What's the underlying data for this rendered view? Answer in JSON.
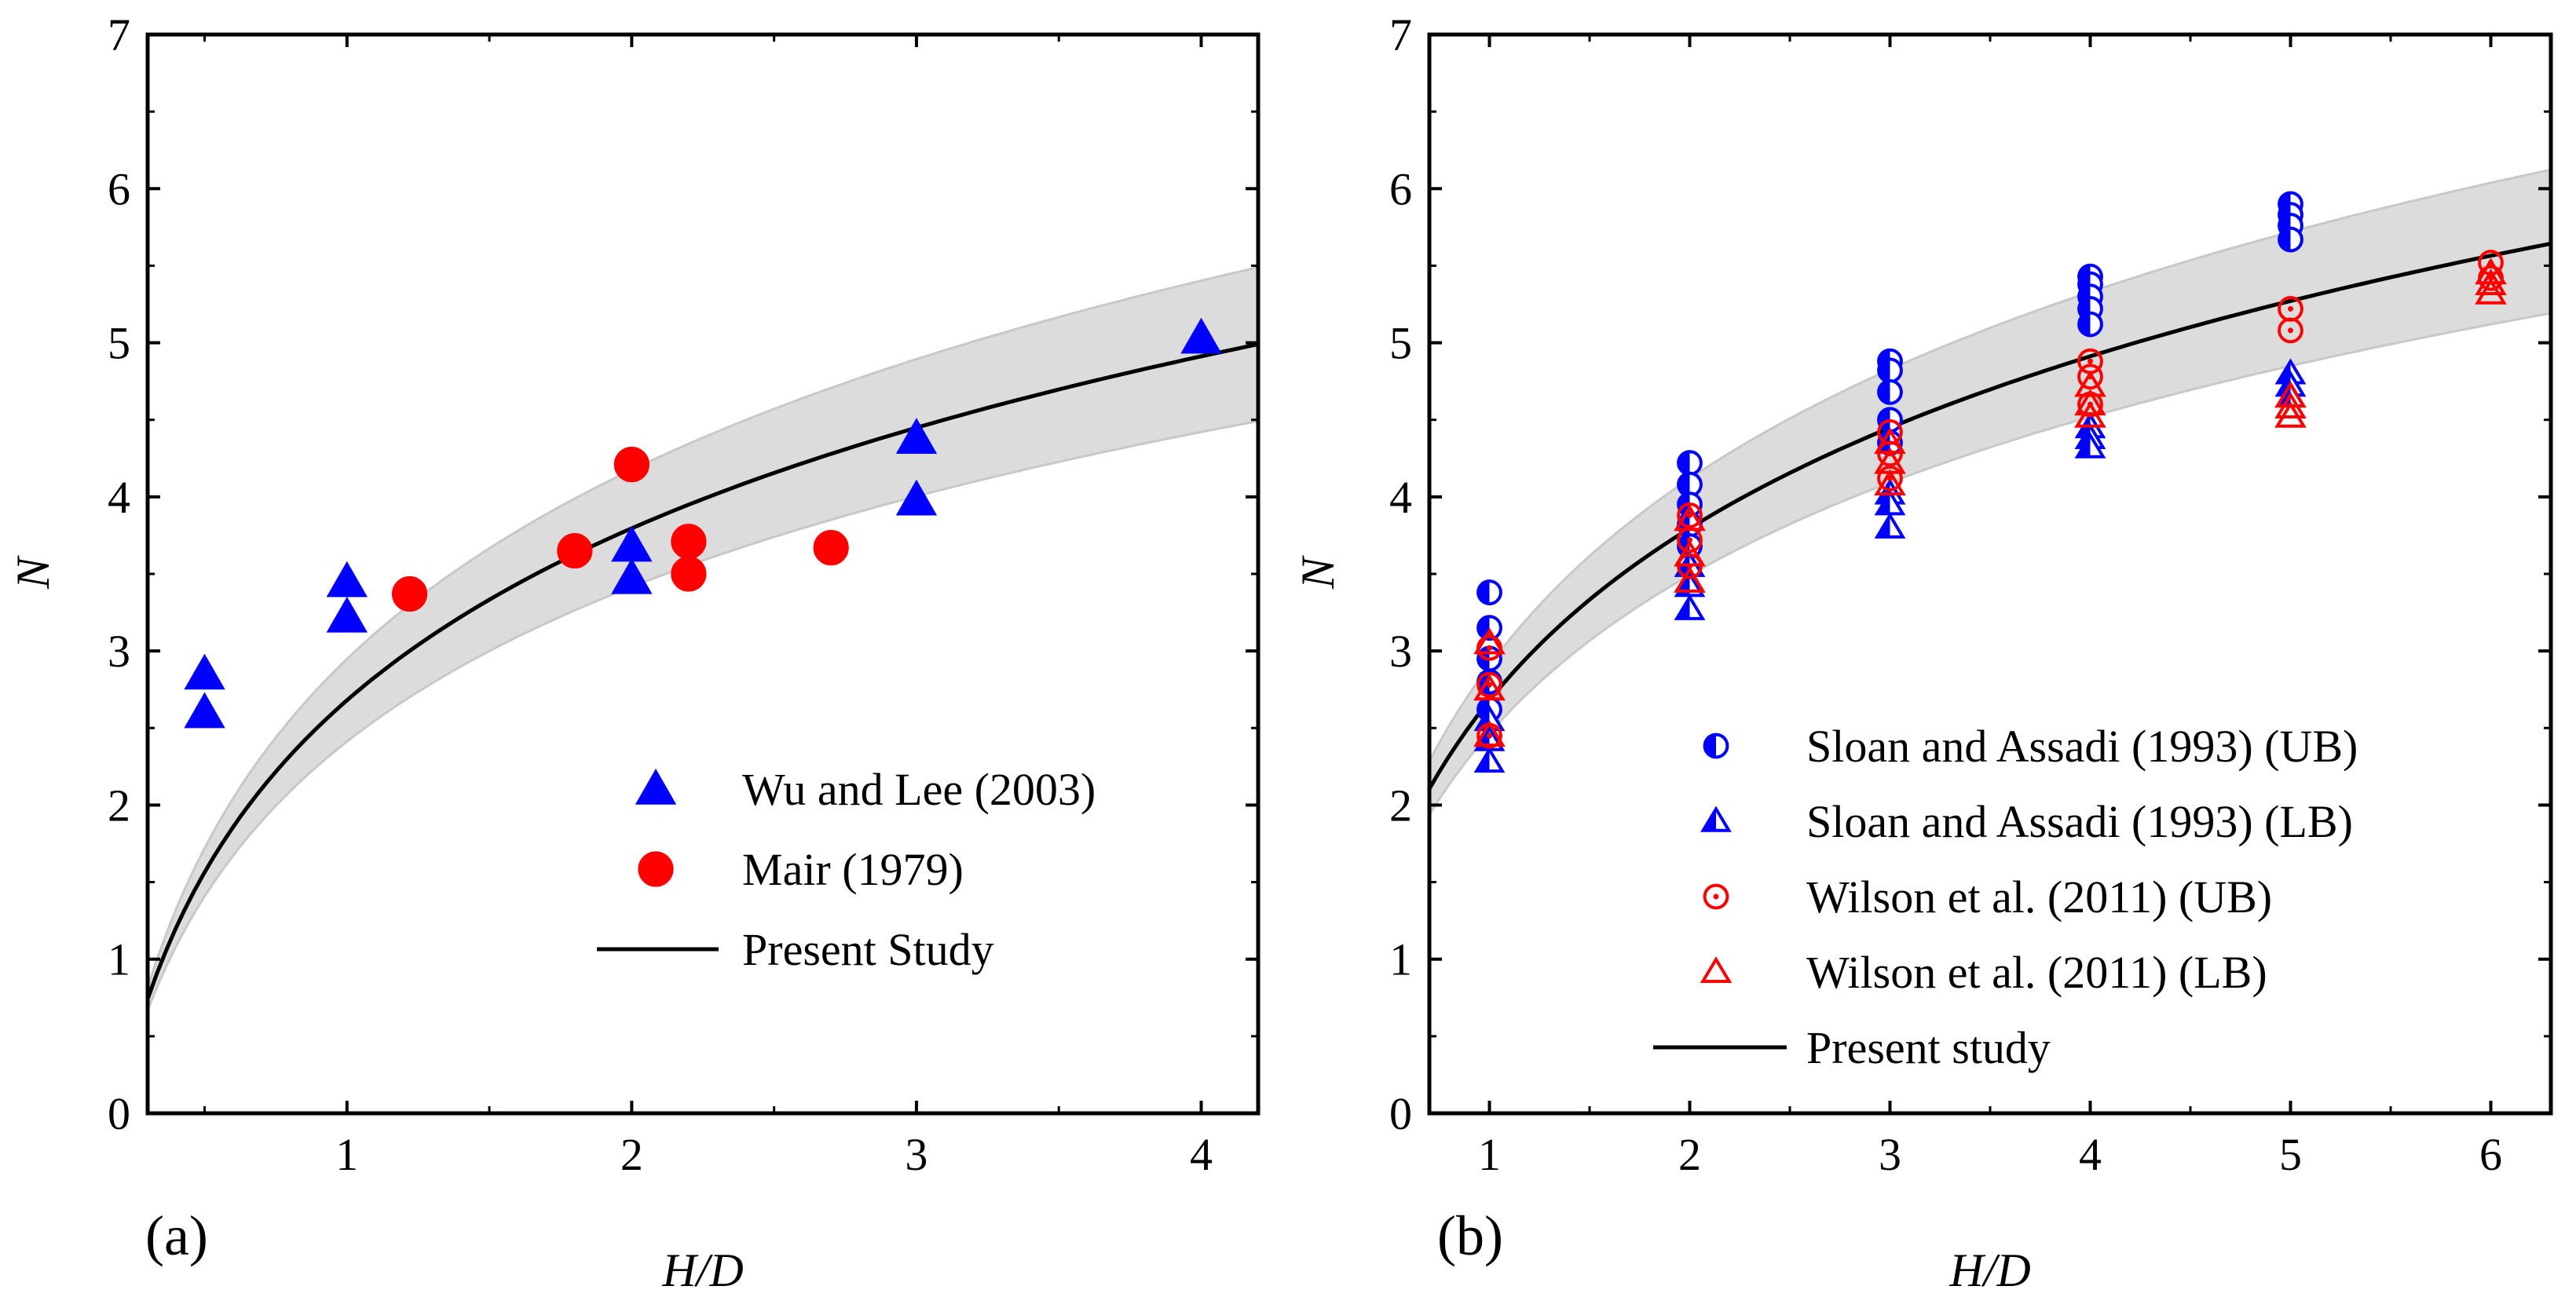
{
  "colors": {
    "blue": "#0000ff",
    "red": "#ff0000",
    "band": "#dcdcdc",
    "band_edge": "#c8c8c8",
    "curve": "#000000"
  },
  "chart_data": [
    {
      "type": "scatter",
      "panel_label": "(a)",
      "xlabel": "H/D",
      "ylabel": "N",
      "xlim": [
        0.3,
        4.2
      ],
      "ylim": [
        0,
        7
      ],
      "xticks": [
        1,
        2,
        3,
        4
      ],
      "yticks": [
        0,
        1,
        2,
        3,
        4,
        5,
        6,
        7
      ],
      "legend_position": "bottom-right",
      "series": [
        {
          "name": "Wu and Lee (2003)",
          "marker": "triangle-filled",
          "color": "#0000ff",
          "points": [
            [
              0.5,
              2.85
            ],
            [
              0.5,
              2.6
            ],
            [
              1.0,
              3.45
            ],
            [
              1.0,
              3.22
            ],
            [
              2.0,
              3.68
            ],
            [
              2.0,
              3.47
            ],
            [
              3.0,
              4.38
            ],
            [
              3.0,
              3.98
            ],
            [
              4.0,
              5.03
            ]
          ]
        },
        {
          "name": "Mair (1979)",
          "marker": "circle-filled",
          "color": "#ff0000",
          "points": [
            [
              1.22,
              3.37
            ],
            [
              1.8,
              3.65
            ],
            [
              2.0,
              4.21
            ],
            [
              2.2,
              3.71
            ],
            [
              2.2,
              3.5
            ],
            [
              2.7,
              3.67
            ]
          ]
        },
        {
          "name": "Present Study",
          "marker": "line",
          "color": "#000000",
          "curve": {
            "form": "N = 2.68 + 1.61*ln(H/D)",
            "band_low_factor": 0.9,
            "band_high_factor": 1.1
          }
        }
      ]
    },
    {
      "type": "scatter",
      "panel_label": "(b)",
      "xlabel": "H/D",
      "ylabel": "N",
      "xlim": [
        0.7,
        6.3
      ],
      "ylim": [
        0,
        7
      ],
      "xticks": [
        1,
        2,
        3,
        4,
        5,
        6
      ],
      "yticks": [
        0,
        1,
        2,
        3,
        4,
        5,
        6,
        7
      ],
      "legend_position": "bottom-right",
      "series": [
        {
          "name": "Sloan and Assadi (1993) (UB)",
          "marker": "circle-half",
          "color": "#0000ff",
          "points": [
            [
              1,
              3.38
            ],
            [
              1,
              3.15
            ],
            [
              1,
              2.95
            ],
            [
              1,
              2.8
            ],
            [
              1,
              2.62
            ],
            [
              2,
              4.22
            ],
            [
              2,
              4.08
            ],
            [
              2,
              3.95
            ],
            [
              2,
              3.82
            ],
            [
              2,
              3.68
            ],
            [
              3,
              4.88
            ],
            [
              3,
              4.82
            ],
            [
              3,
              4.68
            ],
            [
              3,
              4.5
            ],
            [
              3,
              4.35
            ],
            [
              4,
              5.43
            ],
            [
              4,
              5.38
            ],
            [
              4,
              5.3
            ],
            [
              4,
              5.22
            ],
            [
              4,
              5.12
            ],
            [
              5,
              5.9
            ],
            [
              5,
              5.83
            ],
            [
              5,
              5.76
            ],
            [
              5,
              5.67
            ]
          ]
        },
        {
          "name": "Sloan and Assadi (1993) (LB)",
          "marker": "triangle-half",
          "color": "#0000ff",
          "points": [
            [
              1,
              2.55
            ],
            [
              1,
              2.42
            ],
            [
              1,
              2.28
            ],
            [
              2,
              3.55
            ],
            [
              2,
              3.42
            ],
            [
              2,
              3.27
            ],
            [
              3,
              4.02
            ],
            [
              3,
              3.95
            ],
            [
              3,
              3.8
            ],
            [
              4,
              4.45
            ],
            [
              4,
              4.38
            ],
            [
              4,
              4.32
            ],
            [
              5,
              4.8
            ],
            [
              5,
              4.72
            ],
            [
              5,
              4.65
            ]
          ]
        },
        {
          "name": "Wilson et al. (2011) (UB)",
          "marker": "circle-dot-open",
          "color": "#ff0000",
          "points": [
            [
              1,
              3.02
            ],
            [
              1,
              2.78
            ],
            [
              1,
              2.45
            ],
            [
              2,
              3.88
            ],
            [
              2,
              3.72
            ],
            [
              2,
              3.55
            ],
            [
              3,
              4.42
            ],
            [
              3,
              4.28
            ],
            [
              3,
              4.12
            ],
            [
              4,
              4.88
            ],
            [
              4,
              4.78
            ],
            [
              4,
              4.6
            ],
            [
              5,
              5.22
            ],
            [
              5,
              5.08
            ],
            [
              6,
              5.52
            ],
            [
              6,
              5.42
            ]
          ]
        },
        {
          "name": "Wilson et al. (2011) (LB)",
          "marker": "triangle-open",
          "color": "#ff0000",
          "points": [
            [
              1,
              3.05
            ],
            [
              1,
              2.75
            ],
            [
              1,
              2.45
            ],
            [
              2,
              3.85
            ],
            [
              2,
              3.62
            ],
            [
              2,
              3.45
            ],
            [
              3,
              4.35
            ],
            [
              3,
              4.22
            ],
            [
              3,
              4.08
            ],
            [
              4,
              4.72
            ],
            [
              4,
              4.6
            ],
            [
              4,
              4.52
            ],
            [
              5,
              4.65
            ],
            [
              5,
              4.58
            ],
            [
              5,
              4.52
            ],
            [
              6,
              5.45
            ],
            [
              6,
              5.38
            ],
            [
              6,
              5.32
            ]
          ]
        },
        {
          "name": "Present study",
          "marker": "line",
          "color": "#000000",
          "curve": {
            "form": "N = 2.68 + 1.61*ln(H/D)",
            "band_low_factor": 0.92,
            "band_high_factor": 1.085
          }
        }
      ]
    }
  ]
}
